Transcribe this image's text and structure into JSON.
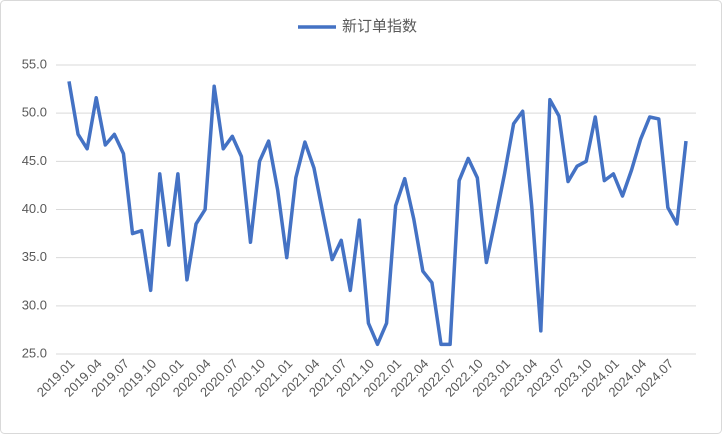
{
  "chart_data": {
    "type": "line",
    "categories": [
      "2019.01",
      null,
      null,
      "2019.04",
      null,
      null,
      "2019.07",
      null,
      null,
      "2019.10",
      null,
      null,
      "2020.01",
      null,
      null,
      "2020.04",
      null,
      null,
      "2020.07",
      null,
      null,
      "2020.10",
      null,
      null,
      "2021.01",
      null,
      null,
      "2021.04",
      null,
      null,
      "2021.07",
      null,
      null,
      "2021.10",
      null,
      null,
      "2022.01",
      null,
      null,
      "2022.04",
      null,
      null,
      "2022.07",
      null,
      null,
      "2022.10",
      null,
      null,
      "2023.01",
      null,
      null,
      "2023.04",
      null,
      null,
      "2023.07",
      null,
      null,
      "2023.10",
      null,
      null,
      "2024.01",
      null,
      null,
      "2024.04",
      null,
      null,
      "2024.07",
      null,
      null
    ],
    "series": [
      {
        "name": "新订单指数",
        "color": "#4472c4",
        "values": [
          53.3,
          47.8,
          46.3,
          51.6,
          46.7,
          47.8,
          45.8,
          37.5,
          37.8,
          31.6,
          43.7,
          36.3,
          43.7,
          32.7,
          38.5,
          40.0,
          52.8,
          46.3,
          47.6,
          45.5,
          36.6,
          45.0,
          47.1,
          42.0,
          35.0,
          43.3,
          47.0,
          44.3,
          39.5,
          34.8,
          36.8,
          31.6,
          38.9,
          28.2,
          26.0,
          28.2,
          40.4,
          43.2,
          39.0,
          33.6,
          32.4,
          26.0,
          26.0,
          43.0,
          45.3,
          43.3,
          34.5,
          39.0,
          43.7,
          48.9,
          50.2,
          40.3,
          27.4,
          51.4,
          49.7,
          42.9,
          44.5,
          45.0,
          49.6,
          43.0,
          43.7,
          41.4,
          44.1,
          47.3,
          49.6,
          49.4,
          40.2,
          38.5,
          47.1
        ]
      }
    ],
    "ylim": [
      25,
      55
    ],
    "yticks": [
      {
        "value": 25,
        "label": "25.0"
      },
      {
        "value": 30,
        "label": "30.0"
      },
      {
        "value": 35,
        "label": "35.0"
      },
      {
        "value": 40,
        "label": "40.0"
      },
      {
        "value": 45,
        "label": "45.0"
      },
      {
        "value": 50,
        "label": "50.0"
      },
      {
        "value": 55,
        "label": "55.0"
      }
    ],
    "grid": true
  }
}
